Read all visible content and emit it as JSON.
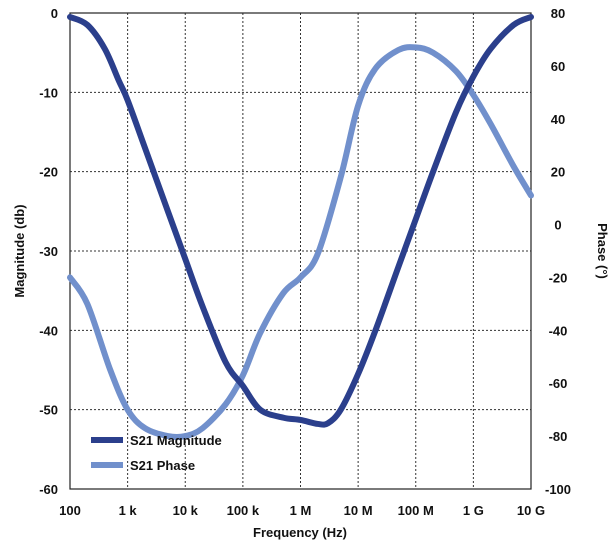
{
  "chart_data": {
    "type": "line",
    "xlabel": "Frequency (Hz)",
    "ylabel_left": "Magnitude (db)",
    "ylabel_right": "Phase (°)",
    "x_scale": "log",
    "xlim": [
      100,
      10000000000
    ],
    "ylim_left": [
      -60,
      0
    ],
    "ylim_right": [
      -100,
      80
    ],
    "grid": true,
    "legend_position": "bottom-left",
    "x_ticks": [
      {
        "value": 100,
        "label": "100"
      },
      {
        "value": 1000,
        "label": "1 k"
      },
      {
        "value": 10000,
        "label": "10 k"
      },
      {
        "value": 100000,
        "label": "100 k"
      },
      {
        "value": 1000000,
        "label": "1 M"
      },
      {
        "value": 10000000,
        "label": "10 M"
      },
      {
        "value": 100000000,
        "label": "100 M"
      },
      {
        "value": 1000000000,
        "label": "1 G"
      },
      {
        "value": 10000000000,
        "label": "10 G"
      }
    ],
    "y_ticks_left": [
      {
        "value": 0,
        "label": "0"
      },
      {
        "value": -10,
        "label": "-10"
      },
      {
        "value": -20,
        "label": "-20"
      },
      {
        "value": -30,
        "label": "-30"
      },
      {
        "value": -40,
        "label": "-40"
      },
      {
        "value": -50,
        "label": "-50"
      },
      {
        "value": -60,
        "label": "-60"
      }
    ],
    "y_ticks_right": [
      {
        "value": 80,
        "label": "80"
      },
      {
        "value": 60,
        "label": "60"
      },
      {
        "value": 40,
        "label": "40"
      },
      {
        "value": 20,
        "label": "20"
      },
      {
        "value": 0,
        "label": "0"
      },
      {
        "value": -20,
        "label": "-20"
      },
      {
        "value": -40,
        "label": "-40"
      },
      {
        "value": -60,
        "label": "-60"
      },
      {
        "value": -80,
        "label": "-80"
      },
      {
        "value": -100,
        "label": "-100"
      }
    ],
    "series": [
      {
        "name": "S21 Magnitude",
        "axis": "left",
        "color": "#2b3f8c",
        "x": [
          100,
          200,
          400,
          700,
          1000,
          2000,
          5000,
          10000,
          20000,
          50000,
          100000,
          200000,
          500000,
          1000000,
          2000000,
          3000000,
          5000000,
          10000000,
          20000000,
          50000000,
          100000000,
          200000000,
          500000000,
          1000000000,
          2000000000,
          5000000000,
          10000000000
        ],
        "y": [
          -0.5,
          -1.5,
          -4.5,
          -8.5,
          -11,
          -17,
          -25,
          -31,
          -37,
          -44,
          -47,
          -50,
          -51,
          -51.3,
          -51.8,
          -51.7,
          -50,
          -45.5,
          -40,
          -32,
          -26,
          -20,
          -12.5,
          -8,
          -4.5,
          -1.5,
          -0.5
        ]
      },
      {
        "name": "S21 Phase",
        "axis": "right",
        "color": "#7190cc",
        "x": [
          100,
          200,
          500,
          1000,
          2000,
          5000,
          10000,
          20000,
          50000,
          100000,
          200000,
          500000,
          1000000,
          2000000,
          5000000,
          10000000,
          20000000,
          50000000,
          100000000,
          200000000,
          500000000,
          1000000000,
          2000000000,
          5000000000,
          10000000000
        ],
        "y": [
          -20,
          -30,
          -55,
          -70,
          -77,
          -80,
          -80,
          -77,
          -68,
          -57,
          -41,
          -26,
          -20,
          -11,
          18,
          45,
          59,
          66,
          67,
          65,
          58,
          49,
          38,
          22,
          11
        ]
      }
    ]
  }
}
